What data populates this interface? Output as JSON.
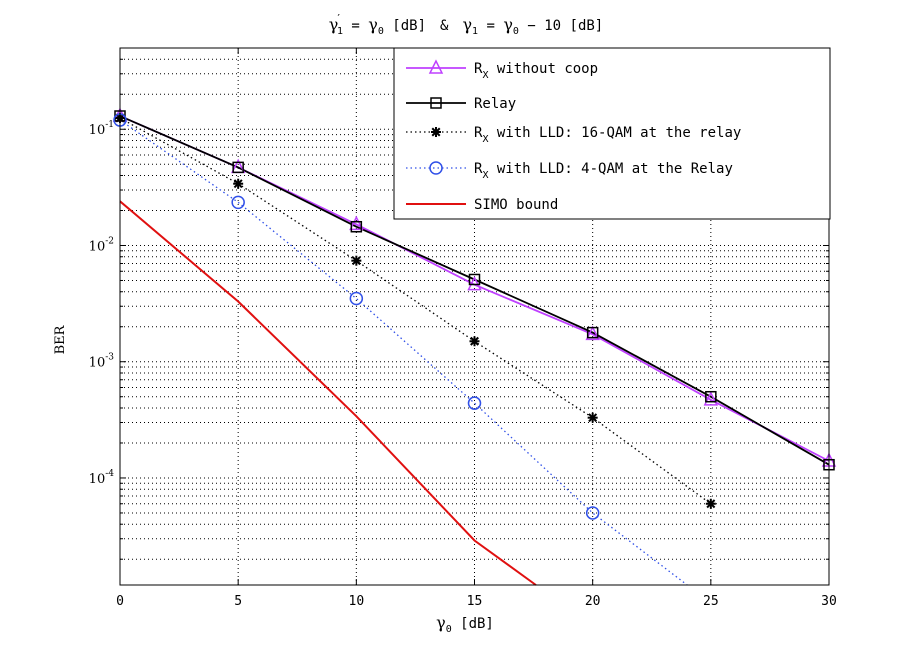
{
  "chart_data": {
    "type": "line",
    "title": "γ′1 = γ0 [dB]  &  γ1 = γ0 − 10 [dB]",
    "title_parts": {
      "lhs1": "γ",
      "lhs1_prime": "′",
      "lhs1_sub": "1",
      "eq1": " = ",
      "rhs1": "γ",
      "rhs1_sub": "0",
      "rhs1_unit": " [dB]",
      "amp": "&",
      "lhs2": "γ",
      "lhs2_sub": "1",
      "eq2": " = ",
      "rhs2": "γ",
      "rhs2_sub": "0",
      "rhs2_rest": " − 10 [dB]"
    },
    "xlabel": "γ0 [dB]",
    "xlabel_parts": {
      "base": "γ",
      "sub": "0",
      "rest": " [dB]"
    },
    "ylabel": "BER",
    "xlim": [
      0,
      30
    ],
    "ylim": [
      1.2e-05,
      0.5
    ],
    "yscale": "log",
    "grid": true,
    "legend_position": "top-right",
    "x_ticks": [
      0,
      5,
      10,
      15,
      20,
      25,
      30
    ],
    "x_tick_labels": [
      "0",
      "5",
      "10",
      "15",
      "20",
      "25",
      "30"
    ],
    "y_ticks": [
      0.1,
      0.01,
      0.001,
      0.0001
    ],
    "y_tick_labels": [
      {
        "base": "10",
        "exp": "-1"
      },
      {
        "base": "10",
        "exp": "-2"
      },
      {
        "base": "10",
        "exp": "-3"
      },
      {
        "base": "10",
        "exp": "-4"
      }
    ],
    "series": [
      {
        "name": "RX without coop",
        "legend_parts": {
          "base": "R",
          "sub": "X",
          "rest": " without coop"
        },
        "color": "#bf40ff",
        "line": "solid",
        "marker": "triangle",
        "x": [
          0,
          5,
          10,
          15,
          20,
          25,
          30
        ],
        "y": [
          0.13,
          0.047,
          0.0152,
          0.0046,
          0.00172,
          0.00047,
          0.00014
        ]
      },
      {
        "name": "Relay",
        "legend_parts": {
          "base": "Relay",
          "sub": "",
          "rest": ""
        },
        "color": "#000000",
        "line": "solid",
        "marker": "square",
        "x": [
          0,
          5,
          10,
          15,
          20,
          25,
          30
        ],
        "y": [
          0.13,
          0.047,
          0.0145,
          0.0051,
          0.00178,
          0.0005,
          0.00013
        ]
      },
      {
        "name": "RX with LLD: 16-QAM at the relay",
        "legend_parts": {
          "base": "R",
          "sub": "X",
          "rest": " with LLD: 16-QAM at the relay"
        },
        "color": "#000000",
        "line": "dotted",
        "marker": "asterisk",
        "x": [
          0,
          5,
          10,
          15,
          20,
          25
        ],
        "y": [
          0.125,
          0.034,
          0.0074,
          0.0015,
          0.00033,
          6e-05
        ]
      },
      {
        "name": "RX with LLD: 4-QAM at the Relay",
        "legend_parts": {
          "base": "R",
          "sub": "X",
          "rest": " with LLD:  4-QAM at the Relay"
        },
        "color": "#3050e8",
        "line": "dotted",
        "marker": "circle",
        "x": [
          0,
          5,
          10,
          15,
          20,
          24
        ],
        "y": [
          0.12,
          0.0235,
          0.0035,
          0.00044,
          5e-05,
          1.2e-05
        ],
        "marker_indices": [
          0,
          1,
          2,
          3,
          4
        ]
      },
      {
        "name": "SIMO bound",
        "legend_parts": {
          "base": "SIMO bound",
          "sub": "",
          "rest": ""
        },
        "color": "#e01010",
        "line": "solid",
        "marker": "none",
        "x": [
          0,
          5,
          10,
          15,
          17.6
        ],
        "y": [
          0.024,
          0.0033,
          0.00034,
          2.9e-05,
          1.2e-05
        ]
      }
    ]
  }
}
